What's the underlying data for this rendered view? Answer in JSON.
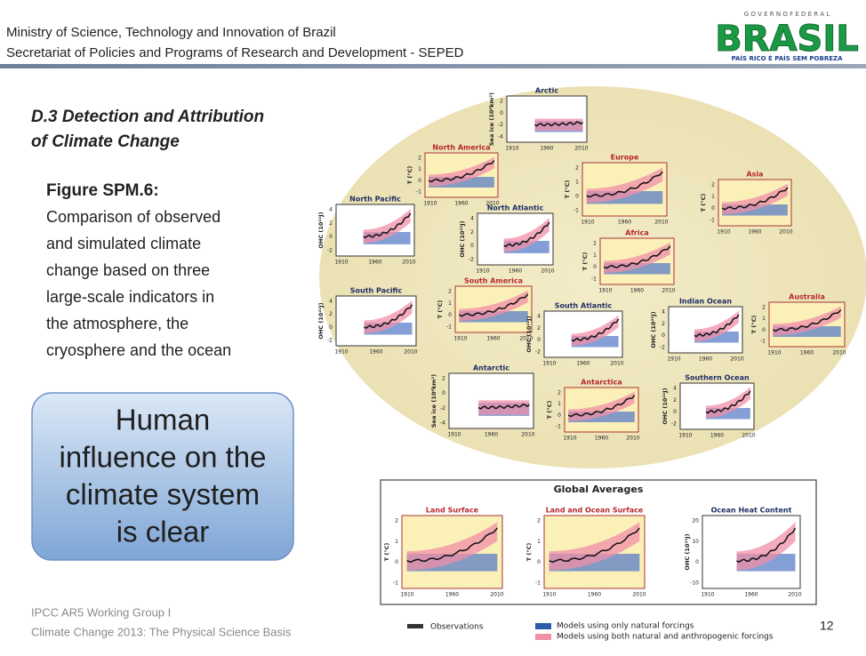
{
  "header": {
    "lines": [
      "Ministry of Science, Technology and Innovation of  Brazil",
      "Secretariat of Policies and Programs of Research and Development  - SEPED"
    ]
  },
  "logo": {
    "top": "G O V E R N O   F E D E R A L",
    "name": "BRASIL",
    "tagline": "PAÍS RICO É PAÍS SEM POBREZA"
  },
  "slide": {
    "title": [
      "D.3 Detection and Attribution",
      "of Climate Change"
    ],
    "figure_label": "Figure SPM.6:",
    "description": [
      "Comparison of observed",
      "and simulated climate",
      "change based on three",
      "large-scale indicators in",
      "the atmosphere, the",
      "cryosphere and the ocean"
    ],
    "callout": [
      "Human",
      "influence on the",
      "climate system",
      "is clear"
    ],
    "page_number": "12"
  },
  "footer": {
    "lines": [
      "IPCC AR5 Working Group I",
      "Climate Change 2013: The Physical Science Basis"
    ]
  },
  "figure": {
    "xticks": [
      "1910",
      "1960",
      "2010"
    ],
    "axes": {
      "land": {
        "ylabel": "T (°C)",
        "yticks": [
          "2",
          "1",
          "0",
          "-1"
        ]
      },
      "ocean": {
        "ylabel": "OHC (10²²J)",
        "yticks": [
          "4",
          "2",
          "0",
          "-2"
        ]
      },
      "ice": {
        "ylabel": "Sea ice (10⁶km²)",
        "yticks": [
          "2",
          "0",
          "-2",
          "-4"
        ]
      },
      "ohc": {
        "ylabel": "OHC (10²²J)",
        "yticks": [
          "20",
          "10",
          "0",
          "-10"
        ]
      }
    },
    "panels": [
      {
        "title": "Arctic",
        "kind": "ice"
      },
      {
        "title": "North America",
        "kind": "land"
      },
      {
        "title": "Europe",
        "kind": "land"
      },
      {
        "title": "Asia",
        "kind": "land"
      },
      {
        "title": "North Pacific",
        "kind": "ocean"
      },
      {
        "title": "North Atlantic",
        "kind": "ocean"
      },
      {
        "title": "Africa",
        "kind": "land"
      },
      {
        "title": "South Pacific",
        "kind": "ocean"
      },
      {
        "title": "South America",
        "kind": "land"
      },
      {
        "title": "South Atlantic",
        "kind": "ocean"
      },
      {
        "title": "Indian Ocean",
        "kind": "ocean"
      },
      {
        "title": "Australia",
        "kind": "land"
      },
      {
        "title": "Antarctic",
        "kind": "ice"
      },
      {
        "title": "Antarctica",
        "kind": "land"
      },
      {
        "title": "Southern Ocean",
        "kind": "ocean"
      }
    ],
    "global": {
      "title": "Global Averages",
      "panels": [
        {
          "title": "Land Surface",
          "kind": "land"
        },
        {
          "title": "Land and Ocean Surface",
          "kind": "land"
        },
        {
          "title": "Ocean Heat Content",
          "kind": "ohc"
        }
      ]
    },
    "legend": [
      "Observations",
      "Models using only natural forcings",
      "Models using both natural and anthropogenic forcings"
    ]
  }
}
